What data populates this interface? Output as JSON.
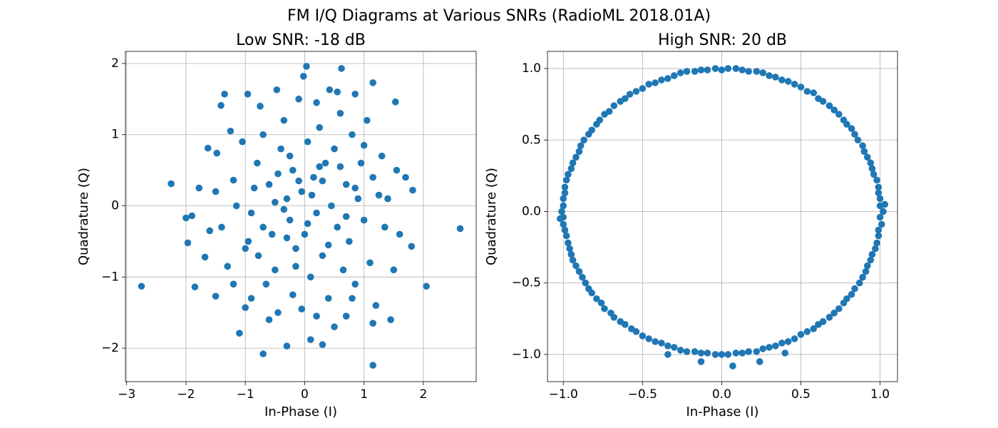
{
  "title": "FM I/Q Diagrams at Various SNRs (RadioML 2018.01A)",
  "chart_data": [
    {
      "type": "scatter",
      "title": "Low SNR: -18 dB",
      "xlabel": "In-Phase (I)",
      "ylabel": "Quadrature (Q)",
      "color": "#1f77b4",
      "grid": true,
      "xlim": [
        -3.02,
        2.89
      ],
      "ylim": [
        -2.47,
        2.17
      ],
      "xticks": [
        {
          "value": -3,
          "label": "−3"
        },
        {
          "value": -2,
          "label": "−2"
        },
        {
          "value": -1,
          "label": "−1"
        },
        0,
        1,
        2
      ],
      "yticks": [
        {
          "value": -2,
          "label": "−2"
        },
        {
          "value": -1,
          "label": "−1"
        },
        0,
        1,
        2
      ],
      "x": [
        -2.75,
        2.62,
        -2.25,
        2.05,
        1.15,
        0.03,
        0.62,
        -0.7,
        1.53,
        -1.35,
        -1.97,
        1.82,
        -1.5,
        -1.1,
        -0.02,
        -0.96,
        0.85,
        1.15,
        0.42,
        -0.47,
        -1.41,
        -1.48,
        -1.63,
        -1.2,
        -1.9,
        -2.0,
        -1.85,
        -1.68,
        -1.3,
        -1.2,
        -1.0,
        -0.95,
        -0.9,
        -0.8,
        -0.7,
        -0.6,
        -0.55,
        -0.5,
        -0.45,
        -0.4,
        -0.35,
        -0.3,
        -0.25,
        -0.2,
        -0.15,
        -0.1,
        -0.05,
        0.0,
        0.05,
        0.1,
        0.15,
        0.2,
        0.25,
        0.3,
        0.35,
        0.4,
        0.45,
        0.5,
        0.55,
        0.6,
        0.65,
        0.7,
        0.75,
        0.8,
        0.85,
        0.9,
        0.95,
        1.0,
        1.05,
        1.1,
        1.15,
        1.2,
        1.3,
        1.35,
        1.4,
        1.5,
        1.55,
        1.6,
        1.7,
        1.8,
        1.45,
        1.15,
        0.7,
        0.3,
        0.1,
        -0.3,
        -0.6,
        -0.9,
        -0.65,
        -1.0,
        -1.15,
        -1.05,
        -1.25,
        -1.5,
        -1.4,
        -1.6,
        -1.78,
        -0.78,
        -0.2,
        0.2,
        0.5,
        0.8,
        -0.35,
        -0.1,
        0.12,
        0.3,
        -0.5,
        -0.25,
        0.6,
        0.85,
        0.4,
        -0.7,
        -0.15,
        0.05,
        0.25,
        -0.45,
        0.7,
        1.0,
        -0.85,
        1.25,
        -0.3,
        0.55,
        -0.75,
        0.2,
        -0.05
      ],
      "y": [
        -1.13,
        -0.32,
        0.31,
        -1.13,
        -2.24,
        1.96,
        1.93,
        -2.08,
        1.46,
        1.57,
        -0.52,
        0.22,
        -1.27,
        -1.79,
        1.82,
        1.57,
        1.57,
        1.73,
        1.63,
        1.63,
        1.41,
        0.74,
        0.81,
        0.36,
        -0.14,
        -0.17,
        -1.14,
        -0.72,
        -0.85,
        -1.1,
        -1.43,
        -0.5,
        -0.1,
        0.6,
        1.0,
        0.3,
        -0.4,
        -0.9,
        -1.5,
        0.8,
        1.2,
        0.1,
        -0.2,
        0.5,
        -0.6,
        1.5,
        0.2,
        -0.4,
        0.9,
        -1.0,
        0.4,
        -0.1,
        1.1,
        -0.7,
        0.6,
        -1.3,
        0.0,
        0.8,
        -0.3,
        1.3,
        -0.9,
        0.3,
        -0.5,
        1.0,
        -1.1,
        0.1,
        0.6,
        -0.2,
        1.2,
        -0.8,
        0.4,
        -1.4,
        0.7,
        -0.3,
        0.1,
        -0.9,
        0.5,
        -0.4,
        0.4,
        -0.57,
        -1.6,
        -1.65,
        -1.55,
        -1.95,
        -1.88,
        -1.97,
        -1.6,
        -1.3,
        -1.1,
        -0.6,
        0.0,
        0.9,
        1.05,
        0.2,
        -0.3,
        -0.35,
        0.25,
        -0.7,
        -1.25,
        -1.55,
        -1.7,
        -1.3,
        -0.05,
        0.35,
        0.15,
        0.35,
        0.05,
        0.7,
        0.55,
        0.25,
        -0.55,
        -0.3,
        -0.85,
        -0.25,
        0.55,
        0.45,
        -0.15,
        0.85,
        0.25,
        0.15,
        -0.45,
        1.6,
        1.4,
        1.45,
        -1.45
      ]
    },
    {
      "type": "scatter",
      "title": "High SNR: 20 dB",
      "xlabel": "In-Phase (I)",
      "ylabel": "Quadrature (Q)",
      "color": "#1f77b4",
      "grid": true,
      "xlim": [
        -1.1,
        1.11
      ],
      "ylim": [
        -1.19,
        1.12
      ],
      "xticks": [
        {
          "value": -1,
          "label": "−1.0"
        },
        {
          "value": -0.5,
          "label": "−0.5"
        },
        {
          "value": 0,
          "label": "0.0"
        },
        0.5,
        {
          "value": 1,
          "label": "1.0"
        }
      ],
      "yticks": [
        {
          "value": -1,
          "label": "−1.0"
        },
        {
          "value": -0.5,
          "label": "−0.5"
        },
        {
          "value": 0,
          "label": "0.0"
        },
        0.5,
        {
          "value": 1,
          "label": "1.0"
        }
      ],
      "x": [
        1.02,
        1.0,
        0.99,
        0.96,
        0.94,
        0.9,
        0.86,
        0.82,
        0.77,
        0.71,
        0.64,
        0.58,
        0.5,
        0.42,
        0.34,
        0.26,
        0.17,
        0.09,
        0.0,
        -0.09,
        -0.17,
        -0.26,
        -0.34,
        -0.42,
        -0.5,
        -0.58,
        -0.64,
        -0.71,
        -0.77,
        -0.82,
        -0.87,
        -0.9,
        -0.94,
        -0.97,
        -0.99,
        -1.0,
        -1.01,
        -1.0,
        -0.98,
        -0.96,
        -0.94,
        -0.9,
        -0.86,
        -0.82,
        -0.76,
        -0.7,
        -0.64,
        -0.57,
        -0.5,
        -0.42,
        -0.34,
        -0.26,
        -0.17,
        -0.09,
        0.0,
        0.09,
        0.17,
        0.26,
        0.34,
        0.42,
        0.5,
        0.58,
        0.64,
        0.71,
        0.77,
        0.82,
        0.87,
        0.91,
        0.94,
        0.97,
        0.99,
        1.01,
        1.0,
        0.99,
        0.98,
        0.95,
        0.92,
        0.89,
        0.84,
        0.79,
        0.74,
        0.68,
        0.61,
        0.54,
        0.46,
        0.38,
        0.3,
        0.22,
        0.13,
        0.04,
        -0.04,
        -0.13,
        -0.22,
        -0.3,
        -0.38,
        -0.46,
        -0.54,
        -0.61,
        -0.68,
        -0.74,
        -0.79,
        -0.84,
        -0.89,
        -0.92,
        -0.95,
        -0.98,
        -0.99,
        -1.0,
        -1.0,
        -0.99,
        -0.97,
        -0.95,
        -0.92,
        -0.88,
        -0.84,
        -0.79,
        -0.74,
        -0.68,
        -0.61,
        -0.54,
        -0.46,
        -0.38,
        -0.3,
        -0.22,
        -0.13,
        -0.04,
        0.04,
        0.13,
        0.22,
        0.3,
        0.38,
        0.46,
        0.54,
        0.61,
        0.68,
        0.74,
        0.79,
        0.84,
        0.89,
        0.92,
        0.95,
        0.98,
        0.99,
        1.0,
        -0.13,
        0.07,
        0.24,
        -0.34,
        0.4,
        1.03,
        -1.02
      ],
      "y": [
        0.0,
        0.09,
        0.17,
        0.26,
        0.34,
        0.42,
        0.5,
        0.58,
        0.64,
        0.71,
        0.77,
        0.83,
        0.87,
        0.91,
        0.94,
        0.97,
        0.98,
        1.0,
        0.99,
        0.99,
        0.98,
        0.97,
        0.93,
        0.9,
        0.86,
        0.82,
        0.77,
        0.7,
        0.64,
        0.57,
        0.5,
        0.42,
        0.34,
        0.26,
        0.17,
        0.09,
        0.0,
        -0.09,
        -0.17,
        -0.26,
        -0.34,
        -0.42,
        -0.5,
        -0.57,
        -0.64,
        -0.71,
        -0.77,
        -0.82,
        -0.87,
        -0.91,
        -0.94,
        -0.97,
        -0.98,
        -0.99,
        -1.0,
        -0.99,
        -0.98,
        -0.96,
        -0.94,
        -0.91,
        -0.86,
        -0.82,
        -0.77,
        -0.71,
        -0.64,
        -0.58,
        -0.5,
        -0.42,
        -0.34,
        -0.26,
        -0.17,
        -0.09,
        0.04,
        0.13,
        0.22,
        0.3,
        0.38,
        0.46,
        0.54,
        0.61,
        0.68,
        0.74,
        0.79,
        0.84,
        0.89,
        0.92,
        0.95,
        0.98,
        0.99,
        1.0,
        1.0,
        0.99,
        0.98,
        0.95,
        0.92,
        0.89,
        0.84,
        0.79,
        0.74,
        0.68,
        0.61,
        0.54,
        0.46,
        0.38,
        0.3,
        0.22,
        0.13,
        0.04,
        -0.04,
        -0.13,
        -0.22,
        -0.3,
        -0.38,
        -0.46,
        -0.54,
        -0.61,
        -0.68,
        -0.74,
        -0.79,
        -0.84,
        -0.89,
        -0.92,
        -0.95,
        -0.98,
        -0.99,
        -1.0,
        -1.0,
        -0.99,
        -0.98,
        -0.95,
        -0.92,
        -0.89,
        -0.84,
        -0.79,
        -0.74,
        -0.68,
        -0.61,
        -0.54,
        -0.46,
        -0.38,
        -0.3,
        -0.22,
        -0.13,
        -0.04,
        -1.05,
        -1.08,
        -1.05,
        -1.0,
        -0.99,
        0.05,
        -0.05
      ]
    }
  ]
}
